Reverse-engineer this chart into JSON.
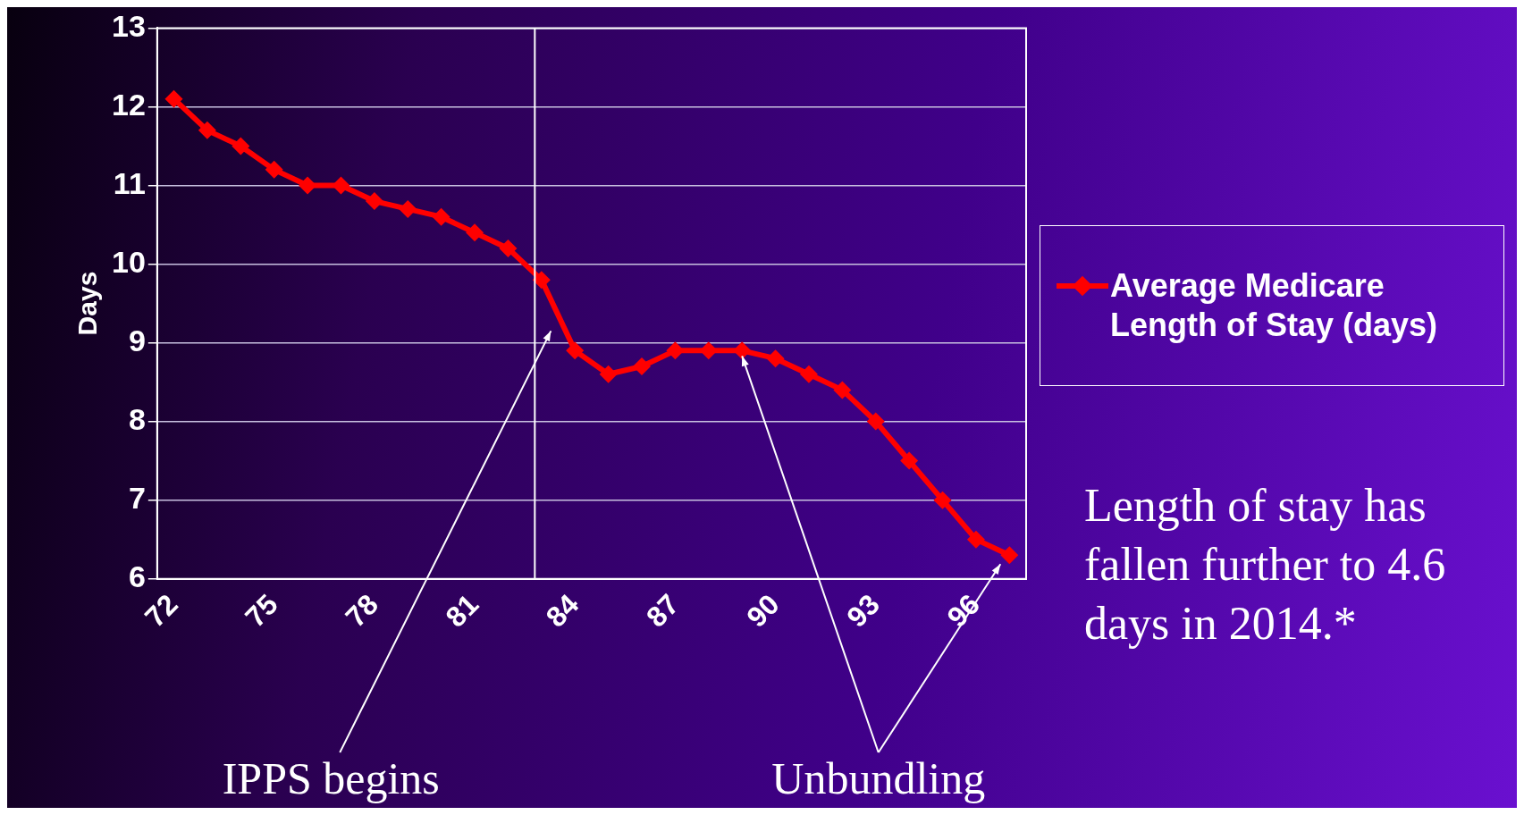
{
  "chart_data": {
    "type": "line",
    "ylabel": "Days",
    "x": [
      72,
      73,
      74,
      75,
      76,
      77,
      78,
      79,
      80,
      81,
      82,
      83,
      84,
      85,
      86,
      87,
      88,
      89,
      90,
      91,
      92,
      93,
      94,
      95,
      96,
      97
    ],
    "series": [
      {
        "name": "Average Medicare Length of Stay (days)",
        "color": "#ff0000",
        "values": [
          12.1,
          11.7,
          11.5,
          11.2,
          11.0,
          11.0,
          10.8,
          10.7,
          10.6,
          10.4,
          10.2,
          9.8,
          8.9,
          8.6,
          8.7,
          8.9,
          8.9,
          8.9,
          8.8,
          8.6,
          8.4,
          8.0,
          7.5,
          7.0,
          6.5,
          6.3
        ]
      }
    ],
    "xlim": [
      71.5,
      97.5
    ],
    "xticks": [
      72,
      75,
      78,
      81,
      84,
      87,
      90,
      93,
      96
    ],
    "ylim": [
      6,
      13
    ],
    "yticks": [
      6,
      7,
      8,
      9,
      10,
      11,
      12,
      13
    ],
    "grid": "y",
    "legend": "right",
    "marker": "diamond",
    "line_style": "solid",
    "ref_lines": [
      {
        "axis": "x",
        "value": 82.8,
        "color": "#ffffff"
      }
    ],
    "annotations": [
      "IPPS begins",
      {
        "text": "Unbundling",
        "x": 89,
        "y": 8.9
      },
      "Length of stay has fallen further to 4.6 days in 2014.*"
    ]
  }
}
